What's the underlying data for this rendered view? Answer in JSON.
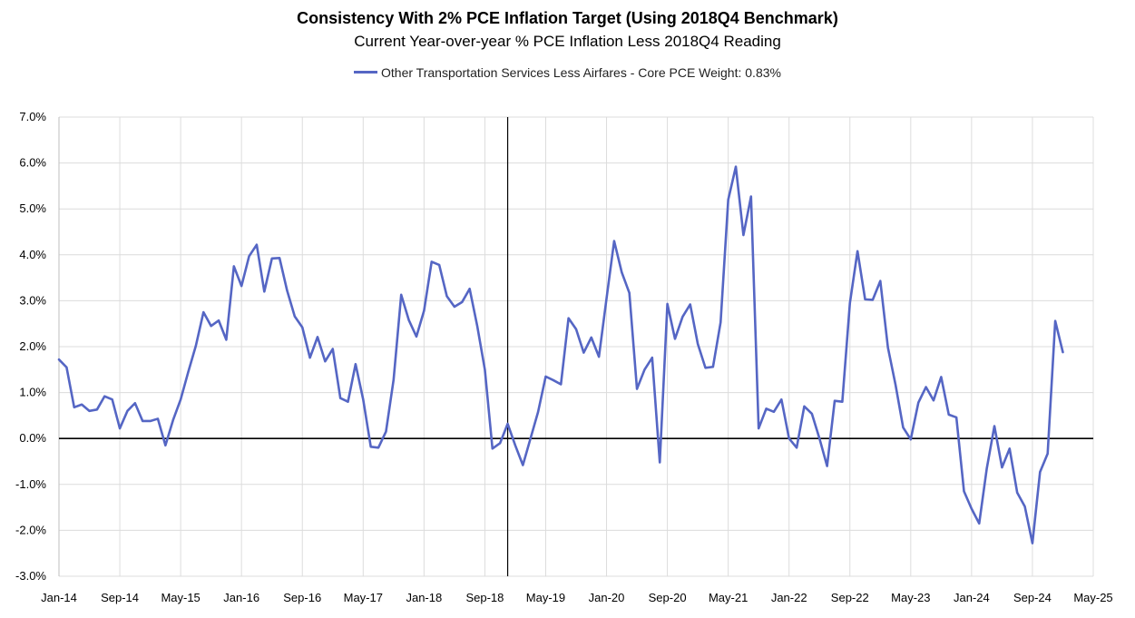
{
  "chart_data": {
    "type": "line",
    "title": "Consistency With 2% PCE Inflation Target (Using 2018Q4 Benchmark)",
    "subtitle": "Current Year-over-year % PCE Inflation Less 2018Q4 Reading",
    "legend_position": "top-center",
    "grid": true,
    "ylim": [
      -3.0,
      7.0
    ],
    "yticks": [
      "-3.0%",
      "-2.0%",
      "-1.0%",
      "0.0%",
      "1.0%",
      "2.0%",
      "3.0%",
      "4.0%",
      "5.0%",
      "6.0%",
      "7.0%"
    ],
    "ytick_values": [
      -3,
      -2,
      -1,
      0,
      1,
      2,
      3,
      4,
      5,
      6,
      7
    ],
    "x_start": "Jan-14",
    "x_end": "May-25",
    "xticks": [
      "Jan-14",
      "Sep-14",
      "May-15",
      "Jan-16",
      "Sep-16",
      "May-17",
      "Jan-18",
      "Sep-18",
      "May-19",
      "Jan-20",
      "Sep-20",
      "May-21",
      "Jan-22",
      "Sep-22",
      "May-23",
      "Jan-24",
      "Sep-24",
      "May-25"
    ],
    "benchmark_marker": "Dec-18",
    "series": [
      {
        "name": "Other Transportation Services Less Airfares - Core PCE Weight: 0.83%",
        "color": "#5566c4",
        "start": "Jan-14",
        "values": [
          1.72,
          1.55,
          0.68,
          0.74,
          0.6,
          0.63,
          0.92,
          0.85,
          0.22,
          0.6,
          0.77,
          0.38,
          0.38,
          0.43,
          -0.15,
          0.4,
          0.85,
          1.45,
          2.02,
          2.75,
          2.45,
          2.57,
          2.15,
          3.75,
          3.32,
          3.97,
          4.22,
          3.2,
          3.92,
          3.93,
          3.22,
          2.66,
          2.42,
          1.76,
          2.21,
          1.68,
          1.95,
          0.88,
          0.8,
          1.62,
          0.85,
          -0.18,
          -0.2,
          0.15,
          1.28,
          3.13,
          2.58,
          2.22,
          2.78,
          3.85,
          3.78,
          3.1,
          2.87,
          2.97,
          3.26,
          2.45,
          1.5,
          -0.22,
          -0.1,
          0.32,
          -0.15,
          -0.58,
          0.0,
          0.58,
          1.35,
          1.27,
          1.18,
          2.62,
          2.38,
          1.87,
          2.2,
          1.78,
          3.05,
          4.3,
          3.62,
          3.17,
          1.08,
          1.5,
          1.76,
          -0.52,
          2.93,
          2.17,
          2.65,
          2.92,
          2.06,
          1.54,
          1.56,
          2.53,
          5.2,
          5.92,
          4.43,
          5.27,
          0.22,
          0.65,
          0.58,
          0.85,
          0.0,
          -0.2,
          0.7,
          0.54,
          0.0,
          -0.6,
          0.82,
          0.8,
          2.95,
          4.08,
          3.03,
          3.02,
          3.43,
          1.98,
          1.17,
          0.24,
          -0.02,
          0.78,
          1.12,
          0.83,
          1.34,
          0.52,
          0.46,
          -1.15,
          -1.53,
          -1.85,
          -0.65,
          0.27,
          -0.63,
          -0.22,
          -1.18,
          -1.48,
          -2.28,
          -0.73,
          -0.33,
          2.56,
          1.88
        ]
      }
    ]
  }
}
